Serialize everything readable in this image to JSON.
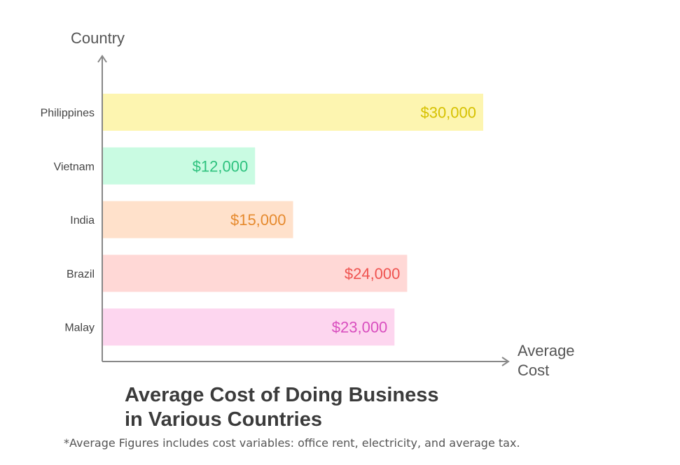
{
  "chart_data": {
    "type": "bar",
    "orientation": "horizontal",
    "title_lines": [
      "Average Cost of Doing Business",
      "in Various Countries"
    ],
    "ylabel": "Country",
    "xlabel_lines": [
      "Average",
      "Cost"
    ],
    "categories": [
      "Philippines",
      "Vietnam",
      "India",
      "Brazil",
      "Malay"
    ],
    "values": [
      30000,
      12000,
      15000,
      24000,
      23000
    ],
    "value_labels": [
      "$30,000",
      "$12,000",
      "$15,000",
      "$24,000",
      "$23,000"
    ],
    "bar_colors": [
      "#fdf5b0",
      "#c9fbe2",
      "#ffe1cb",
      "#ffd8d6",
      "#fdd6ef"
    ],
    "label_colors": [
      "#d6c100",
      "#2ec27e",
      "#e68a2e",
      "#ef5350",
      "#d94fbf"
    ],
    "xlim": [
      0,
      30000
    ],
    "grid": false,
    "legend": "none"
  },
  "footnote": "*Average Figures includes cost variables: office rent, electricity, and average tax."
}
